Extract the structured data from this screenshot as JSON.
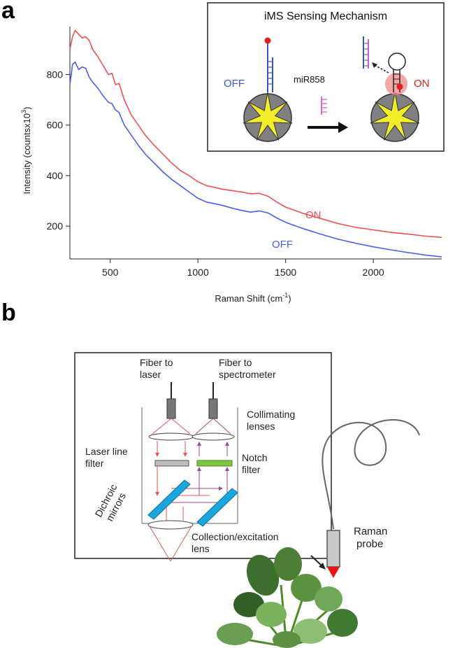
{
  "panel_a": {
    "letter": "a",
    "inset": {
      "title": "iMS Sensing Mechanism",
      "off_label": "OFF",
      "on_label": "ON",
      "mirna_label": "miR858"
    },
    "curve_labels": {
      "on": "ON",
      "off": "OFF"
    }
  },
  "chart_data": {
    "type": "line",
    "title": "",
    "xlabel_main": "Raman Shift (cm",
    "xlabel_sup": "-1",
    "xlabel_end": ")",
    "ylabel_main": "Intensity (countsx10",
    "ylabel_sup": "3",
    "ylabel_end": ")",
    "xlim": [
      270,
      2390
    ],
    "ylim": [
      70,
      990
    ],
    "xticks": [
      500,
      1000,
      1500,
      2000
    ],
    "yticks": [
      200,
      400,
      600,
      800
    ],
    "grid": false,
    "series": [
      {
        "name": "ON",
        "color": "#f0504e",
        "x": [
          270,
          285,
          300,
          320,
          340,
          360,
          380,
          400,
          430,
          460,
          490,
          510,
          530,
          550,
          580,
          620,
          660,
          700,
          750,
          800,
          850,
          900,
          950,
          1000,
          1050,
          1100,
          1150,
          1200,
          1250,
          1300,
          1350,
          1400,
          1450,
          1500,
          1600,
          1700,
          1800,
          1900,
          2000,
          2100,
          2200,
          2300,
          2390
        ],
        "y": [
          900,
          950,
          975,
          960,
          945,
          950,
          935,
          900,
          870,
          835,
          800,
          805,
          760,
          765,
          700,
          640,
          600,
          560,
          520,
          485,
          450,
          420,
          400,
          375,
          360,
          352,
          345,
          340,
          335,
          328,
          330,
          318,
          295,
          275,
          250,
          230,
          210,
          195,
          185,
          175,
          168,
          160,
          155
        ]
      },
      {
        "name": "OFF",
        "color": "#4a5ef0",
        "x": [
          270,
          285,
          300,
          320,
          340,
          360,
          380,
          400,
          430,
          460,
          490,
          510,
          530,
          550,
          580,
          620,
          660,
          700,
          750,
          800,
          850,
          900,
          950,
          1000,
          1050,
          1100,
          1150,
          1200,
          1250,
          1300,
          1350,
          1400,
          1450,
          1500,
          1600,
          1700,
          1800,
          1900,
          2000,
          2100,
          2200,
          2300,
          2390
        ],
        "y": [
          760,
          840,
          850,
          820,
          830,
          825,
          790,
          770,
          745,
          715,
          690,
          685,
          660,
          650,
          600,
          560,
          520,
          485,
          450,
          415,
          385,
          360,
          335,
          310,
          295,
          288,
          280,
          270,
          262,
          255,
          260,
          252,
          232,
          215,
          190,
          168,
          148,
          132,
          118,
          106,
          95,
          85,
          78
        ]
      }
    ]
  },
  "panel_b": {
    "letter": "b",
    "labels": {
      "fiber_laser_1": "Fiber to",
      "fiber_laser_2": "laser",
      "fiber_spec_1": "Fiber to",
      "fiber_spec_2": "spectrometer",
      "collimating_1": "Collimating",
      "collimating_2": "lenses",
      "laser_line_1": "Laser line",
      "laser_line_2": "filter",
      "notch_1": "Notch",
      "notch_2": "filter",
      "dichroic_1": "Dichroic",
      "dichroic_2": "mirrors",
      "collection_1": "Collection/excitation",
      "collection_2": "lens",
      "raman_1": "Raman",
      "raman_2": "probe"
    }
  }
}
